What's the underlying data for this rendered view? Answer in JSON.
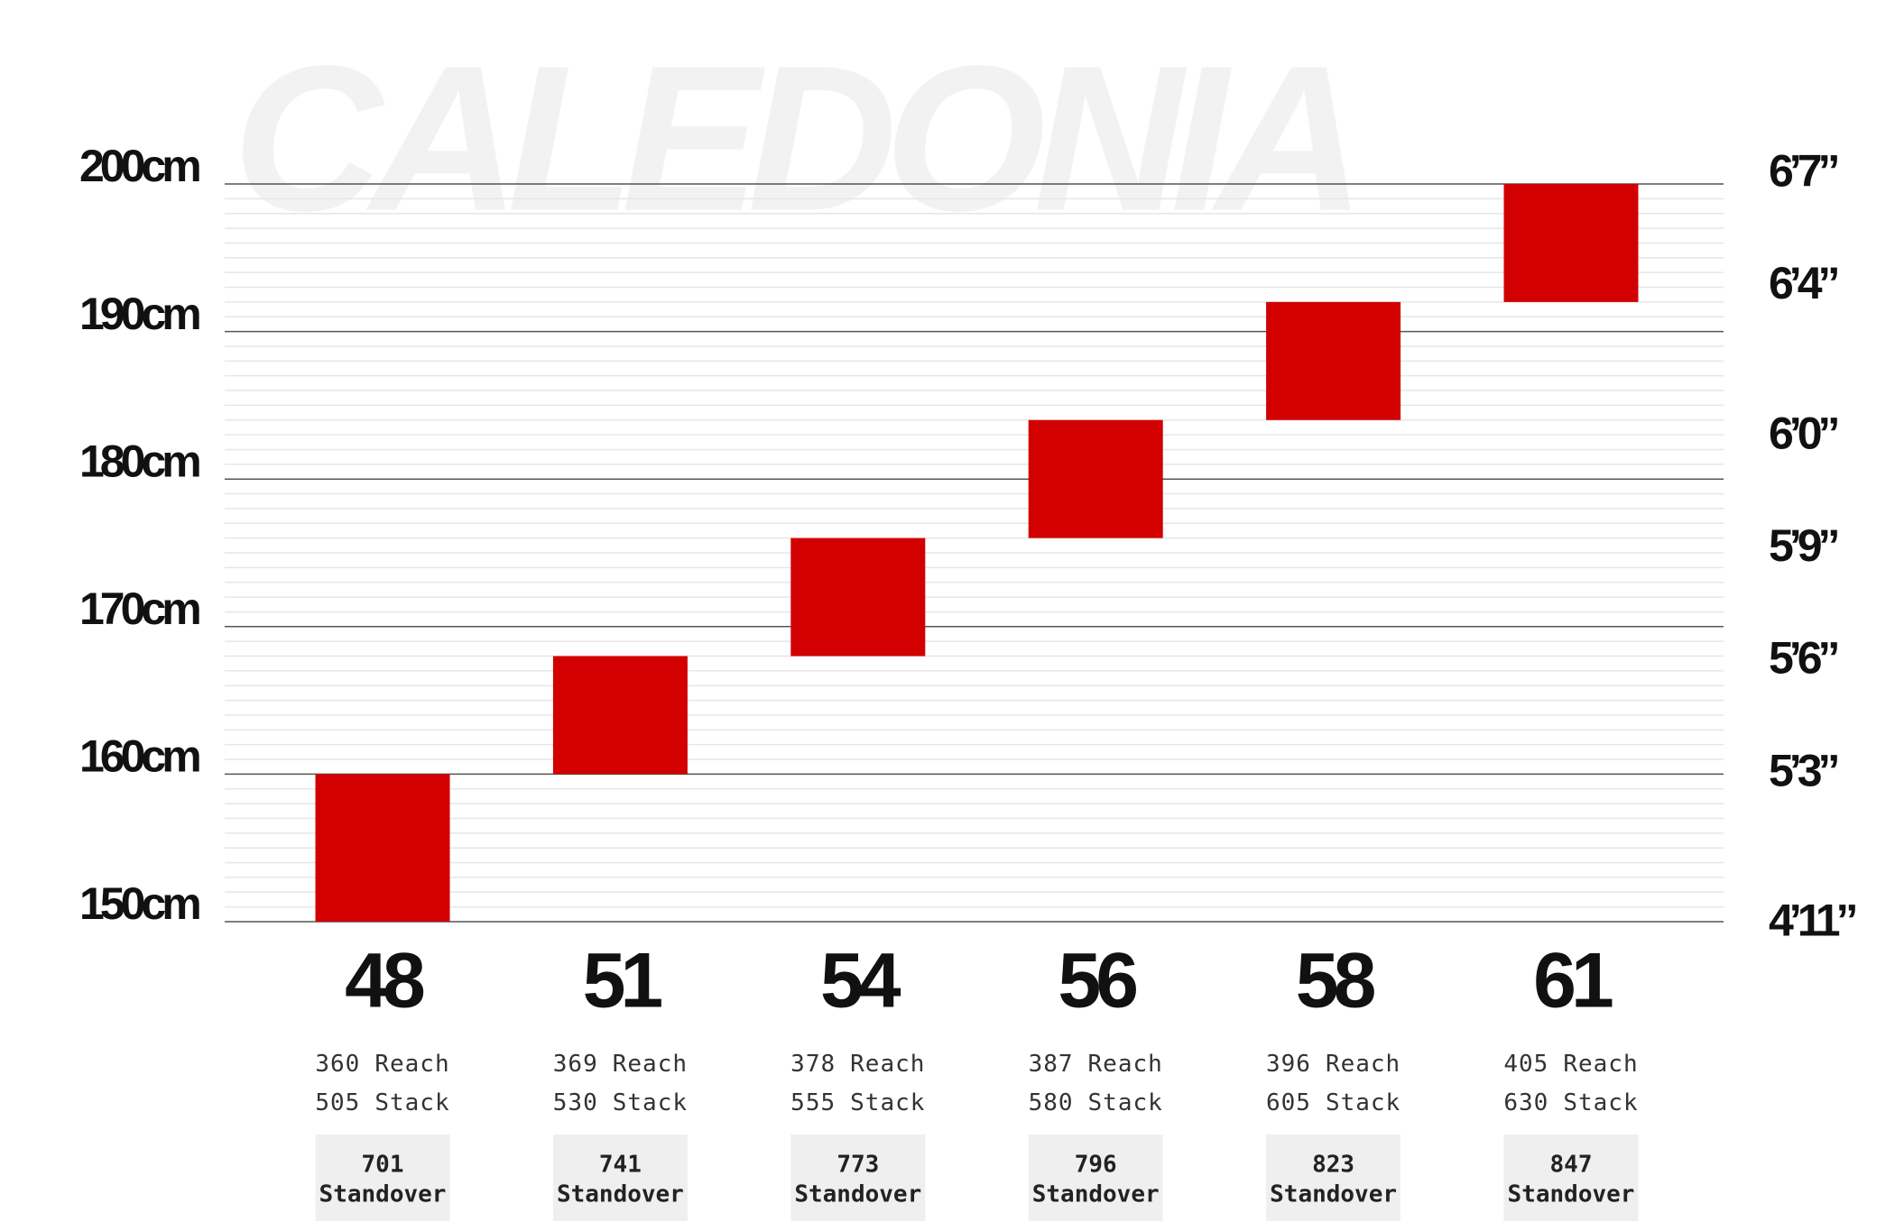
{
  "chart_data": {
    "type": "floating_bar",
    "watermark": "CALEDONIA",
    "categories": [
      "48",
      "51",
      "54",
      "56",
      "58",
      "61"
    ],
    "ranges": [
      [
        150,
        160
      ],
      [
        160,
        168
      ],
      [
        168,
        176
      ],
      [
        176,
        184
      ],
      [
        184,
        192
      ],
      [
        192,
        200
      ]
    ],
    "color": "#d20000",
    "ylim": [
      150,
      200
    ],
    "yticks": [
      {
        "value": 150,
        "label": "150cm"
      },
      {
        "value": 160,
        "label": "160cm"
      },
      {
        "value": 170,
        "label": "170cm"
      },
      {
        "value": 180,
        "label": "180cm"
      },
      {
        "value": 190,
        "label": "190cm"
      },
      {
        "value": 200,
        "label": "200cm"
      }
    ],
    "y2lim": [
      59.06,
      78.74
    ],
    "y2ticks": [
      {
        "value": 59,
        "label": "4’11”"
      },
      {
        "value": 63,
        "label": "5’3”"
      },
      {
        "value": 66,
        "label": "5’6”"
      },
      {
        "value": 69,
        "label": "5’9”"
      },
      {
        "value": 72,
        "label": "6’0”"
      },
      {
        "value": 76,
        "label": "6’4”"
      },
      {
        "value": 79,
        "label": "6’7”"
      }
    ],
    "grid": true,
    "minor_grid": true,
    "reach": [
      360,
      369,
      378,
      387,
      396,
      405
    ],
    "reach_label": "Reach",
    "stack": [
      505,
      530,
      555,
      580,
      605,
      630
    ],
    "stack_label": "Stack",
    "standover": [
      701,
      741,
      773,
      796,
      823,
      847
    ],
    "standover_label": "Standover"
  }
}
